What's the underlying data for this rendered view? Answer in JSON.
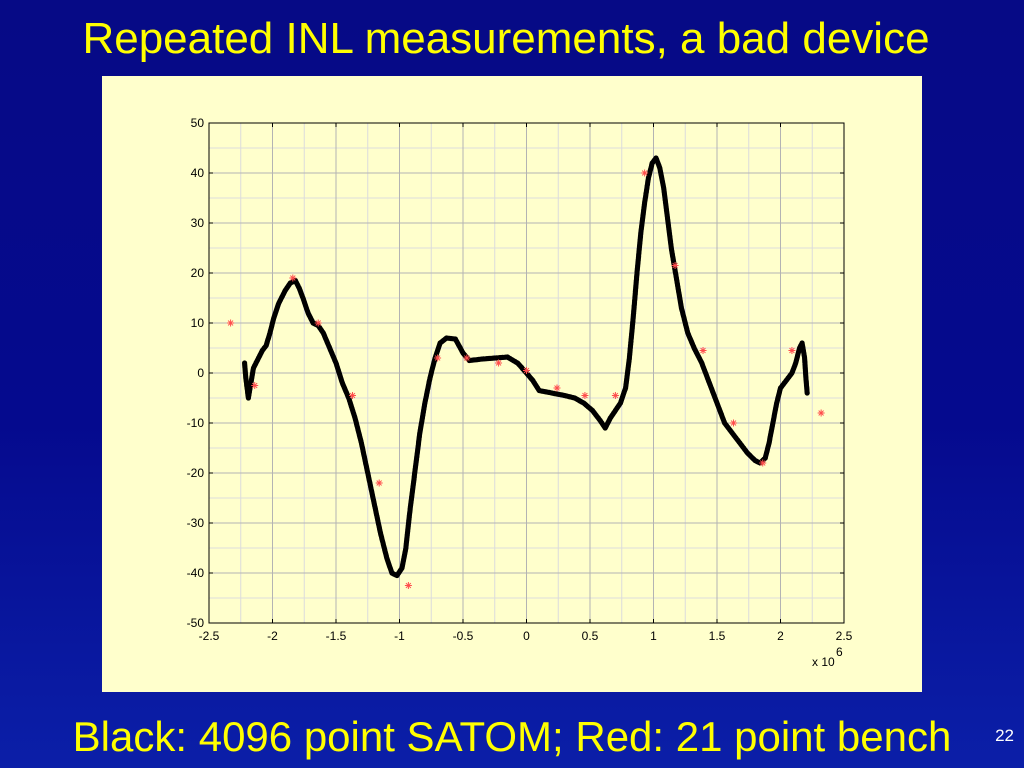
{
  "slide": {
    "title": "Repeated INL measurements, a bad device",
    "caption": "Black: 4096 point SATOM; Red: 21 point bench",
    "page_number": "22"
  },
  "colors": {
    "background": "#06098a",
    "title_text": "#ffff00",
    "plot_panel": "#ffffcc",
    "grid": "#b3b3b3",
    "satom_series": "#000000",
    "bench_series": "#ff4d4d"
  },
  "chart_data": {
    "type": "scatter",
    "title": "",
    "xlabel": "",
    "ylabel": "",
    "xlim": [
      -2.5,
      2.5
    ],
    "ylim": [
      -50,
      50
    ],
    "x_ticks": [
      -2.5,
      -2,
      -1.5,
      -1,
      -0.5,
      0,
      0.5,
      1,
      1.5,
      2,
      2.5
    ],
    "x_tick_labels": [
      "-2.5",
      "-2",
      "-1.5",
      "-1",
      "-0.5",
      "0",
      "0.5",
      "1",
      "1.5",
      "2",
      "2.5"
    ],
    "y_ticks": [
      -50,
      -40,
      -30,
      -20,
      -10,
      0,
      10,
      20,
      30,
      40,
      50
    ],
    "y_tick_labels": [
      "-50",
      "-40",
      "-30",
      "-20",
      "-10",
      "0",
      "10",
      "20",
      "30",
      "40",
      "50"
    ],
    "x_exponent_base": "x 10",
    "x_exponent_power": "6",
    "x_scale_factor": 1000000,
    "grid": true,
    "series": [
      {
        "marker": "filled-dot",
        "color": "#000000",
        "points": [
          [
            -2.22,
            2
          ],
          [
            -2.21,
            -1
          ],
          [
            -2.2,
            -3
          ],
          [
            -2.19,
            -5
          ],
          [
            -2.17,
            -2
          ],
          [
            -2.15,
            1
          ],
          [
            -2.12,
            2.5
          ],
          [
            -2.08,
            4.5
          ],
          [
            -2.05,
            5.5
          ],
          [
            -2.02,
            8
          ],
          [
            -1.99,
            11
          ],
          [
            -1.95,
            14
          ],
          [
            -1.9,
            16.5
          ],
          [
            -1.86,
            18
          ],
          [
            -1.82,
            18.5
          ],
          [
            -1.79,
            17
          ],
          [
            -1.76,
            15
          ],
          [
            -1.72,
            12
          ],
          [
            -1.68,
            10
          ],
          [
            -1.64,
            9.5
          ],
          [
            -1.6,
            8
          ],
          [
            -1.55,
            5
          ],
          [
            -1.5,
            2
          ],
          [
            -1.45,
            -2
          ],
          [
            -1.4,
            -5
          ],
          [
            -1.35,
            -9
          ],
          [
            -1.3,
            -14
          ],
          [
            -1.25,
            -20
          ],
          [
            -1.2,
            -26
          ],
          [
            -1.15,
            -32
          ],
          [
            -1.1,
            -37
          ],
          [
            -1.06,
            -40
          ],
          [
            -1.02,
            -40.5
          ],
          [
            -0.98,
            -39
          ],
          [
            -0.95,
            -35
          ],
          [
            -0.92,
            -28
          ],
          [
            -0.88,
            -20
          ],
          [
            -0.84,
            -12
          ],
          [
            -0.8,
            -6
          ],
          [
            -0.76,
            -1
          ],
          [
            -0.72,
            3
          ],
          [
            -0.68,
            6
          ],
          [
            -0.63,
            7
          ],
          [
            -0.56,
            6.8
          ],
          [
            -0.5,
            4
          ],
          [
            -0.45,
            2.5
          ],
          [
            -0.35,
            2.8
          ],
          [
            -0.25,
            3
          ],
          [
            -0.15,
            3.2
          ],
          [
            -0.07,
            2
          ],
          [
            0,
            0
          ],
          [
            0.05,
            -1.5
          ],
          [
            0.1,
            -3.5
          ],
          [
            0.2,
            -4
          ],
          [
            0.3,
            -4.5
          ],
          [
            0.38,
            -5
          ],
          [
            0.45,
            -6
          ],
          [
            0.52,
            -7.5
          ],
          [
            0.58,
            -9.5
          ],
          [
            0.62,
            -11
          ],
          [
            0.66,
            -9
          ],
          [
            0.7,
            -7.5
          ],
          [
            0.74,
            -6
          ],
          [
            0.78,
            -3
          ],
          [
            0.81,
            3
          ],
          [
            0.84,
            11
          ],
          [
            0.87,
            20
          ],
          [
            0.9,
            28
          ],
          [
            0.93,
            34
          ],
          [
            0.96,
            39
          ],
          [
            0.99,
            42
          ],
          [
            1.02,
            43
          ],
          [
            1.05,
            41
          ],
          [
            1.08,
            37
          ],
          [
            1.11,
            31
          ],
          [
            1.14,
            25
          ],
          [
            1.18,
            19
          ],
          [
            1.22,
            13
          ],
          [
            1.27,
            8
          ],
          [
            1.32,
            5
          ],
          [
            1.38,
            2
          ],
          [
            1.44,
            -2
          ],
          [
            1.5,
            -6
          ],
          [
            1.56,
            -10
          ],
          [
            1.62,
            -12
          ],
          [
            1.68,
            -14
          ],
          [
            1.74,
            -16
          ],
          [
            1.8,
            -17.5
          ],
          [
            1.84,
            -18
          ],
          [
            1.88,
            -17
          ],
          [
            1.91,
            -14
          ],
          [
            1.94,
            -10
          ],
          [
            1.97,
            -6
          ],
          [
            2.0,
            -3
          ],
          [
            2.03,
            -2
          ],
          [
            2.06,
            -1
          ],
          [
            2.09,
            0
          ],
          [
            2.12,
            2
          ],
          [
            2.15,
            5
          ],
          [
            2.17,
            6
          ],
          [
            2.19,
            3
          ],
          [
            2.2,
            -1
          ],
          [
            2.21,
            -4
          ]
        ]
      },
      {
        "marker": "small-star",
        "color": "#ff4d4d",
        "points": [
          [
            -2.33,
            10
          ],
          [
            -2.14,
            -2.5
          ],
          [
            -1.84,
            19
          ],
          [
            -1.64,
            10
          ],
          [
            -1.37,
            -4.5
          ],
          [
            -1.16,
            -22
          ],
          [
            -0.93,
            -42.5
          ],
          [
            -0.7,
            3
          ],
          [
            -0.47,
            3
          ],
          [
            -0.22,
            2
          ],
          [
            0.0,
            0.5
          ],
          [
            0.24,
            -3
          ],
          [
            0.46,
            -4.5
          ],
          [
            0.7,
            -4.5
          ],
          [
            0.93,
            40
          ],
          [
            1.17,
            21.5
          ],
          [
            1.39,
            4.5
          ],
          [
            1.63,
            -10
          ],
          [
            1.86,
            -18
          ],
          [
            2.09,
            4.5
          ],
          [
            2.32,
            -8
          ]
        ]
      }
    ]
  }
}
